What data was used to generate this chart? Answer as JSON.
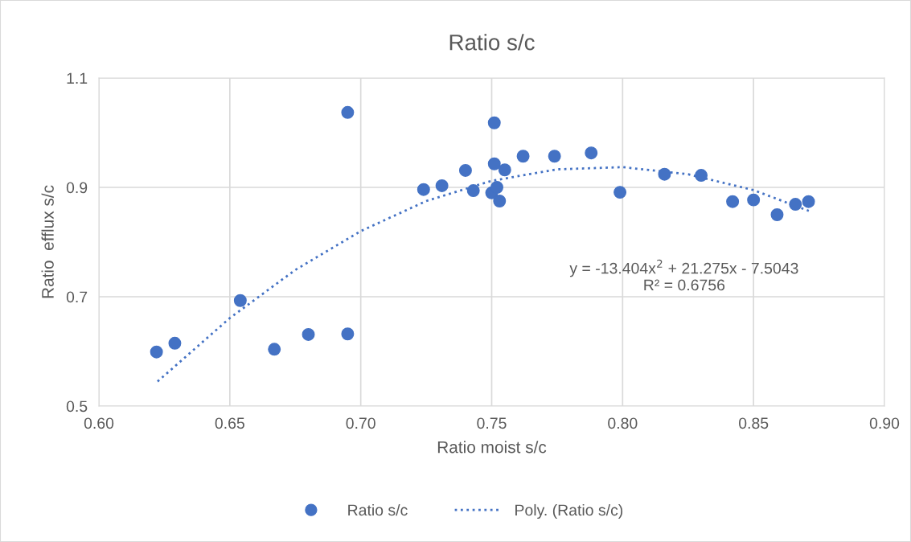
{
  "chart_data": {
    "type": "scatter",
    "title": "Ratio s/c",
    "xlabel": "Ratio moist s/c",
    "ylabel": "Ratio  efflux s/c",
    "xlim": [
      0.6,
      0.9
    ],
    "xticks": [
      {
        "value": 0.6,
        "label": "0.60"
      },
      {
        "value": 0.65,
        "label": "0.65"
      },
      {
        "value": 0.7,
        "label": "0.70"
      },
      {
        "value": 0.75,
        "label": "0.75"
      },
      {
        "value": 0.8,
        "label": "0.80"
      },
      {
        "value": 0.85,
        "label": "0.85"
      },
      {
        "value": 0.9,
        "label": "0.90"
      }
    ],
    "ylim": [
      0.5,
      1.1
    ],
    "yticks": [
      0.5,
      0.7,
      0.9,
      1.1
    ],
    "grid": true,
    "legend": "bottom",
    "series": [
      {
        "name": "Ratio s/c",
        "marker": "circle",
        "color": "#4472c4",
        "x": [
          0.622,
          0.629,
          0.654,
          0.667,
          0.68,
          0.695,
          0.695,
          0.724,
          0.731,
          0.74,
          0.743,
          0.75,
          0.751,
          0.751,
          0.752,
          0.753,
          0.755,
          0.762,
          0.774,
          0.788,
          0.799,
          0.816,
          0.83,
          0.842,
          0.85,
          0.859,
          0.866,
          0.871
        ],
        "values": [
          0.599,
          0.615,
          0.693,
          0.604,
          0.631,
          0.632,
          1.037,
          0.896,
          0.903,
          0.931,
          0.894,
          0.89,
          0.943,
          1.018,
          0.9,
          0.875,
          0.932,
          0.957,
          0.957,
          0.963,
          0.891,
          0.924,
          0.922,
          0.874,
          0.877,
          0.85,
          0.869,
          0.874
        ]
      },
      {
        "name": "Poly. (Ratio s/c)",
        "type": "line",
        "line_style": "dotted",
        "color": "#4472c4",
        "x": [
          0.6224,
          0.65,
          0.675,
          0.7,
          0.725,
          0.75,
          0.775,
          0.8,
          0.825,
          0.85,
          0.8711
        ],
        "values": [
          0.545,
          0.661,
          0.749,
          0.82,
          0.875,
          0.912,
          0.933,
          0.937,
          0.924,
          0.895,
          0.857
        ]
      }
    ],
    "annotations": [
      "y = -13.404x$^{2}$ + 21.275x - 7.5043",
      "R² = 0.6756"
    ]
  }
}
